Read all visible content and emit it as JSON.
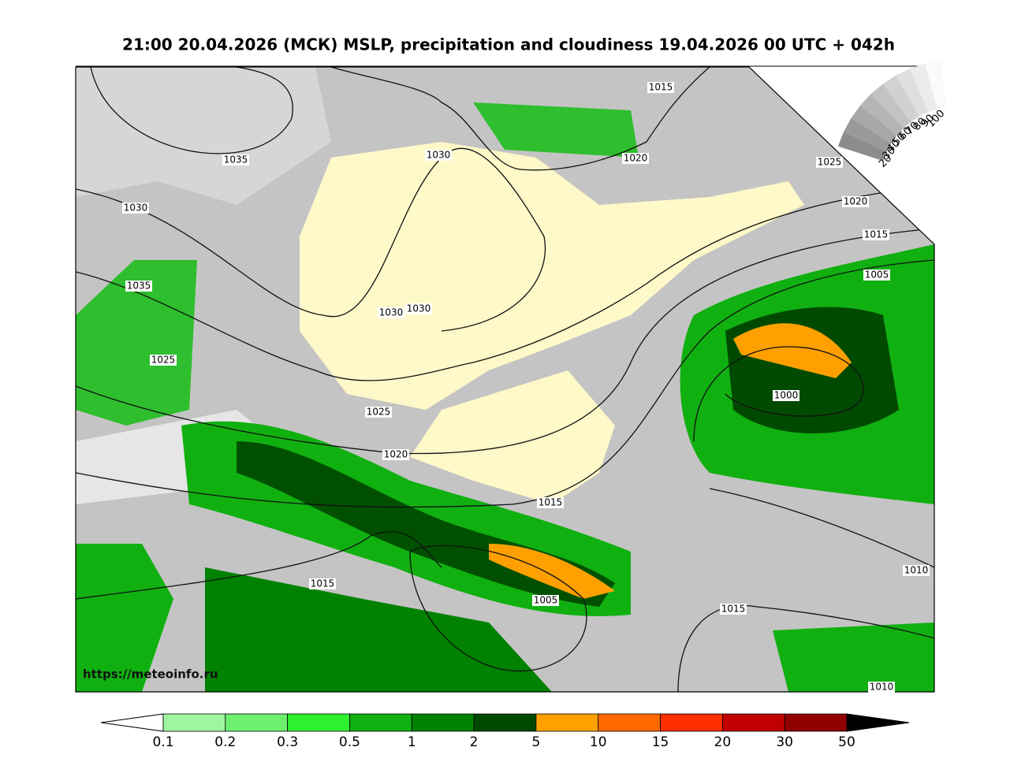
{
  "title": "21:00 20.04.2026 (МСК) MSLP, precipitation and cloudiness 19.04.2026 00 UTC + 042h",
  "watermark": "https://meteoinfo.ru",
  "isobar_labels": [
    "1015",
    "1035",
    "1030",
    "1020",
    "1025",
    "1030",
    "1020",
    "1015",
    "1005",
    "1035",
    "1030",
    "1030",
    "1025",
    "1000",
    "1025",
    "1020",
    "1015",
    "1015",
    "1005",
    "1015",
    "1010",
    "1010"
  ],
  "precip_scale": {
    "ticks": [
      "0.1",
      "0.2",
      "0.3",
      "0.5",
      "1",
      "2",
      "5",
      "10",
      "15",
      "20",
      "30",
      "50"
    ],
    "colors": [
      "#a0f5a0",
      "#6ef06e",
      "#2ef02e",
      "#10b010",
      "#008200",
      "#004a00",
      "#ffa000",
      "#ff6a00",
      "#ff3000",
      "#c00000",
      "#900000"
    ]
  },
  "cloud_scale": {
    "ticks": [
      "100",
      "90",
      "80",
      "70",
      "60",
      "50",
      "40",
      "30",
      "20"
    ]
  }
}
